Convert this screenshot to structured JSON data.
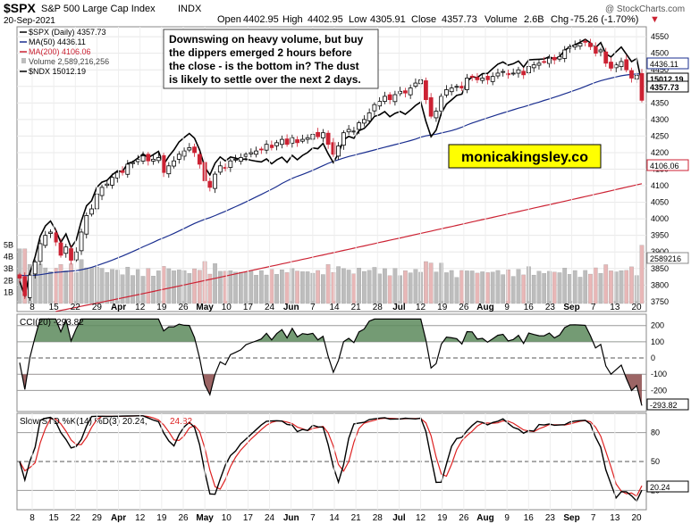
{
  "header": {
    "symbol": "$SPX",
    "name": "S&P 500 Large Cap Index",
    "exchange": "INDX",
    "date": "20-Sep-2021",
    "copyright": "@ StockCharts.com",
    "open_label": "Open",
    "open": "4402.95",
    "high_label": "High",
    "high": "4402.95",
    "low_label": "Low",
    "low": "4305.91",
    "close_label": "Close",
    "close": "4357.73",
    "volume_label": "Volume",
    "volume": "2.6B",
    "chg_label": "Chg",
    "chg": "-75.26 (-1.70%)",
    "chg_arrow": "▼"
  },
  "annotation": "Downswing on heavy volume, but buy the dippers emerged 2 hours before the close - is the bottom in? The dust is likely to settle over the next 2 days.",
  "brand": "monicakingsley.co",
  "colors": {
    "up": "#000000",
    "down": "#cc2233",
    "ma50": "#1a2e8f",
    "ma200": "#cc2233",
    "ndx": "#000000",
    "brand_bg": "#ffff00",
    "vol_up": "#bdbdbd",
    "vol_down": "#e8b7b7",
    "cci_fill_pos": "#5c8a5c",
    "cci_fill_neg": "#8b4a4a",
    "sto_d": "#dd2222"
  },
  "chart_data": [
    {
      "type": "candlestick",
      "panel": "price",
      "legend": {
        "price": "$SPX (Daily) 4357.73",
        "ma50": "MA(50) 4436.11",
        "ma200": "MA(200) 4106.06",
        "volume": "Volume 2,589,216,256",
        "ndx": "$NDX 15012.19"
      },
      "y_ticks": [
        "4550",
        "4500",
        "4450",
        "4400",
        "4350",
        "4300",
        "4250",
        "4200",
        "4150",
        "4100",
        "4050",
        "4000",
        "3950",
        "3900",
        "3850",
        "3800",
        "3750"
      ],
      "ylim": [
        3720,
        4580
      ],
      "volume_ticks": [
        "5B",
        "4B",
        "3B",
        "2B",
        "1B"
      ],
      "value_tags": {
        "ma50": "4436.11",
        "ndx": "15012.19",
        "close": "4357.73",
        "ma200": "4106.06",
        "volume": "2589216"
      },
      "x_labels": [
        "8",
        "15",
        "22",
        "29",
        "Apr",
        "12",
        "19",
        "26",
        "May",
        "10",
        "17",
        "24",
        "Jun",
        "7",
        "14",
        "21",
        "28",
        "Jul",
        "12",
        "19",
        "26",
        "Aug",
        "9",
        "16",
        "23",
        "Sep",
        "7",
        "13",
        "20"
      ],
      "close_path": [
        3821,
        3768,
        3830,
        3870,
        3925,
        3950,
        3960,
        3930,
        3890,
        3915,
        3875,
        3900,
        3960,
        4010,
        4030,
        4075,
        4095,
        4105,
        4125,
        4140,
        4140,
        4165,
        4170,
        4180,
        4190,
        4175,
        4180,
        4185,
        4140,
        4160,
        4175,
        4195,
        4205,
        4215,
        4200,
        4165,
        4115,
        4095,
        4135,
        4160,
        4155,
        4175,
        4180,
        4185,
        4195,
        4200,
        4205,
        4210,
        4225,
        4215,
        4230,
        4240,
        4225,
        4245,
        4230,
        4240,
        4245,
        4255,
        4248,
        4260,
        4225,
        4195,
        4220,
        4260,
        4270,
        4265,
        4290,
        4300,
        4320,
        4345,
        4355,
        4370,
        4360,
        4375,
        4385,
        4380,
        4395,
        4410,
        4420,
        4360,
        4310,
        4325,
        4370,
        4390,
        4395,
        4400,
        4395,
        4425,
        4430,
        4420,
        4425,
        4420,
        4430,
        4440,
        4445,
        4435,
        4440,
        4450,
        4435,
        4460,
        4465,
        4470,
        4475,
        4485,
        4480,
        4490,
        4510,
        4520,
        4525,
        4530,
        4535,
        4520,
        4500,
        4510,
        4470,
        4455,
        4465,
        4475,
        4450,
        4425,
        4433,
        4358
      ]
    },
    {
      "type": "line",
      "panel": "cci",
      "legend": "CCI(20) -293.82",
      "series": [
        {
          "name": "CCI(20)",
          "last": "-293.82"
        }
      ],
      "y_ticks": [
        "200",
        "100",
        "0",
        "-100",
        "-200"
      ],
      "ylim": [
        -330,
        270
      ],
      "value_tag": "-293.82"
    },
    {
      "type": "line",
      "panel": "stochastic",
      "legend_k": "Slow STO %K(14) %D(3) 20.24,",
      "legend_d": "24.82",
      "series": [
        {
          "name": "%K",
          "last": "20.24"
        },
        {
          "name": "%D",
          "last": "24.82"
        }
      ],
      "y_ticks": [
        "80",
        "50",
        "20"
      ],
      "ylim": [
        0,
        100
      ],
      "value_tag": "20.24"
    }
  ]
}
